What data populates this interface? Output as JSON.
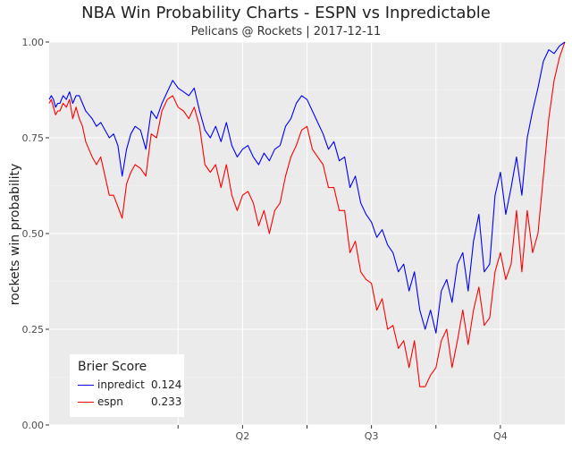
{
  "chart_data": {
    "type": "line",
    "title": "NBA Win Probability Charts - ESPN vs Inpredictable",
    "subtitle": "Pelicans @ Rockets | 2017-12-11",
    "ylabel": "rockets win probability",
    "xlabel": "",
    "ylim": [
      0,
      1
    ],
    "xlim": [
      0,
      48
    ],
    "y_ticks": [
      "0.00",
      "0.25",
      "0.50",
      "0.75",
      "1.00"
    ],
    "x_ticks": [
      {
        "x": 12,
        "label": ""
      },
      {
        "x": 18,
        "label": "Q2"
      },
      {
        "x": 24,
        "label": ""
      },
      {
        "x": 30,
        "label": "Q3"
      },
      {
        "x": 36,
        "label": ""
      },
      {
        "x": 42,
        "label": "Q4"
      }
    ],
    "grid": true,
    "legend": {
      "title": "Brier Score",
      "position": "bottom-left",
      "entries": [
        {
          "name": "inpredict",
          "score": "0.124",
          "color": "#0000ff"
        },
        {
          "name": "espn",
          "score": "0.233",
          "color": "#ff0000"
        }
      ]
    },
    "series": [
      {
        "name": "inpredict",
        "color": "#0000ff",
        "x": [
          0,
          0.2,
          0.4,
          0.6,
          0.8,
          1.0,
          1.3,
          1.6,
          1.9,
          2.2,
          2.5,
          2.8,
          3.1,
          3.4,
          3.7,
          4.0,
          4.4,
          4.8,
          5.2,
          5.6,
          6.0,
          6.4,
          6.8,
          7.2,
          7.6,
          8.0,
          8.5,
          9.0,
          9.5,
          10.0,
          10.5,
          11.0,
          11.5,
          12.0,
          12.5,
          13.0,
          13.5,
          14.0,
          14.5,
          15.0,
          15.5,
          16.0,
          16.5,
          17.0,
          17.5,
          18.0,
          18.5,
          19.0,
          19.5,
          20.0,
          20.5,
          21.0,
          21.5,
          22.0,
          22.5,
          23.0,
          23.5,
          24.0,
          24.5,
          25.0,
          25.5,
          26.0,
          26.5,
          27.0,
          27.5,
          28.0,
          28.5,
          29.0,
          29.5,
          30.0,
          30.5,
          31.0,
          31.5,
          32.0,
          32.5,
          33.0,
          33.5,
          34.0,
          34.5,
          35.0,
          35.5,
          36.0,
          36.5,
          37.0,
          37.5,
          38.0,
          38.5,
          39.0,
          39.5,
          40.0,
          40.5,
          41.0,
          41.5,
          42.0,
          42.5,
          43.0,
          43.5,
          44.0,
          44.5,
          45.0,
          45.5,
          46.0,
          46.5,
          47.0,
          47.5,
          48.0
        ],
        "values": [
          0.85,
          0.86,
          0.85,
          0.83,
          0.84,
          0.84,
          0.86,
          0.85,
          0.87,
          0.84,
          0.86,
          0.86,
          0.84,
          0.82,
          0.81,
          0.8,
          0.78,
          0.79,
          0.77,
          0.75,
          0.76,
          0.73,
          0.65,
          0.72,
          0.76,
          0.78,
          0.77,
          0.72,
          0.82,
          0.8,
          0.84,
          0.87,
          0.9,
          0.88,
          0.87,
          0.86,
          0.88,
          0.82,
          0.77,
          0.75,
          0.78,
          0.74,
          0.79,
          0.73,
          0.7,
          0.72,
          0.73,
          0.7,
          0.68,
          0.71,
          0.69,
          0.72,
          0.73,
          0.78,
          0.8,
          0.84,
          0.86,
          0.85,
          0.82,
          0.79,
          0.76,
          0.72,
          0.74,
          0.69,
          0.7,
          0.62,
          0.65,
          0.58,
          0.55,
          0.53,
          0.49,
          0.51,
          0.47,
          0.45,
          0.4,
          0.42,
          0.35,
          0.4,
          0.3,
          0.25,
          0.3,
          0.24,
          0.35,
          0.38,
          0.32,
          0.42,
          0.45,
          0.35,
          0.48,
          0.55,
          0.4,
          0.42,
          0.6,
          0.66,
          0.55,
          0.62,
          0.7,
          0.6,
          0.75,
          0.82,
          0.88,
          0.95,
          0.98,
          0.97,
          0.99,
          1.0
        ],
        "marker_note": ""
      },
      {
        "name": "espn",
        "color": "#ff0000",
        "x": [
          0,
          0.2,
          0.4,
          0.6,
          0.8,
          1.0,
          1.3,
          1.6,
          1.9,
          2.2,
          2.5,
          2.8,
          3.1,
          3.4,
          3.7,
          4.0,
          4.4,
          4.8,
          5.2,
          5.6,
          6.0,
          6.4,
          6.8,
          7.2,
          7.6,
          8.0,
          8.5,
          9.0,
          9.5,
          10.0,
          10.5,
          11.0,
          11.5,
          12.0,
          12.5,
          13.0,
          13.5,
          14.0,
          14.5,
          15.0,
          15.5,
          16.0,
          16.5,
          17.0,
          17.5,
          18.0,
          18.5,
          19.0,
          19.5,
          20.0,
          20.5,
          21.0,
          21.5,
          22.0,
          22.5,
          23.0,
          23.5,
          24.0,
          24.5,
          25.0,
          25.5,
          26.0,
          26.5,
          27.0,
          27.5,
          28.0,
          28.5,
          29.0,
          29.5,
          30.0,
          30.5,
          31.0,
          31.5,
          32.0,
          32.5,
          33.0,
          33.5,
          34.0,
          34.5,
          35.0,
          35.5,
          36.0,
          36.5,
          37.0,
          37.5,
          38.0,
          38.5,
          39.0,
          39.5,
          40.0,
          40.5,
          41.0,
          41.5,
          42.0,
          42.5,
          43.0,
          43.5,
          44.0,
          44.5,
          45.0,
          45.5,
          46.0,
          46.5,
          47.0,
          47.5,
          48.0
        ],
        "values": [
          0.84,
          0.85,
          0.83,
          0.81,
          0.82,
          0.82,
          0.84,
          0.83,
          0.85,
          0.8,
          0.83,
          0.8,
          0.78,
          0.74,
          0.72,
          0.7,
          0.68,
          0.7,
          0.65,
          0.6,
          0.6,
          0.57,
          0.54,
          0.63,
          0.66,
          0.68,
          0.67,
          0.65,
          0.76,
          0.75,
          0.82,
          0.85,
          0.86,
          0.83,
          0.82,
          0.8,
          0.83,
          0.78,
          0.68,
          0.66,
          0.68,
          0.62,
          0.68,
          0.6,
          0.56,
          0.6,
          0.61,
          0.58,
          0.52,
          0.56,
          0.5,
          0.56,
          0.58,
          0.65,
          0.7,
          0.73,
          0.77,
          0.78,
          0.72,
          0.7,
          0.68,
          0.62,
          0.62,
          0.56,
          0.56,
          0.45,
          0.48,
          0.4,
          0.38,
          0.37,
          0.3,
          0.33,
          0.25,
          0.26,
          0.2,
          0.22,
          0.15,
          0.22,
          0.1,
          0.1,
          0.13,
          0.15,
          0.22,
          0.25,
          0.15,
          0.22,
          0.3,
          0.21,
          0.3,
          0.36,
          0.26,
          0.28,
          0.4,
          0.45,
          0.38,
          0.42,
          0.56,
          0.4,
          0.56,
          0.45,
          0.5,
          0.65,
          0.8,
          0.9,
          0.96,
          1.0
        ],
        "marker_note": ""
      }
    ]
  }
}
